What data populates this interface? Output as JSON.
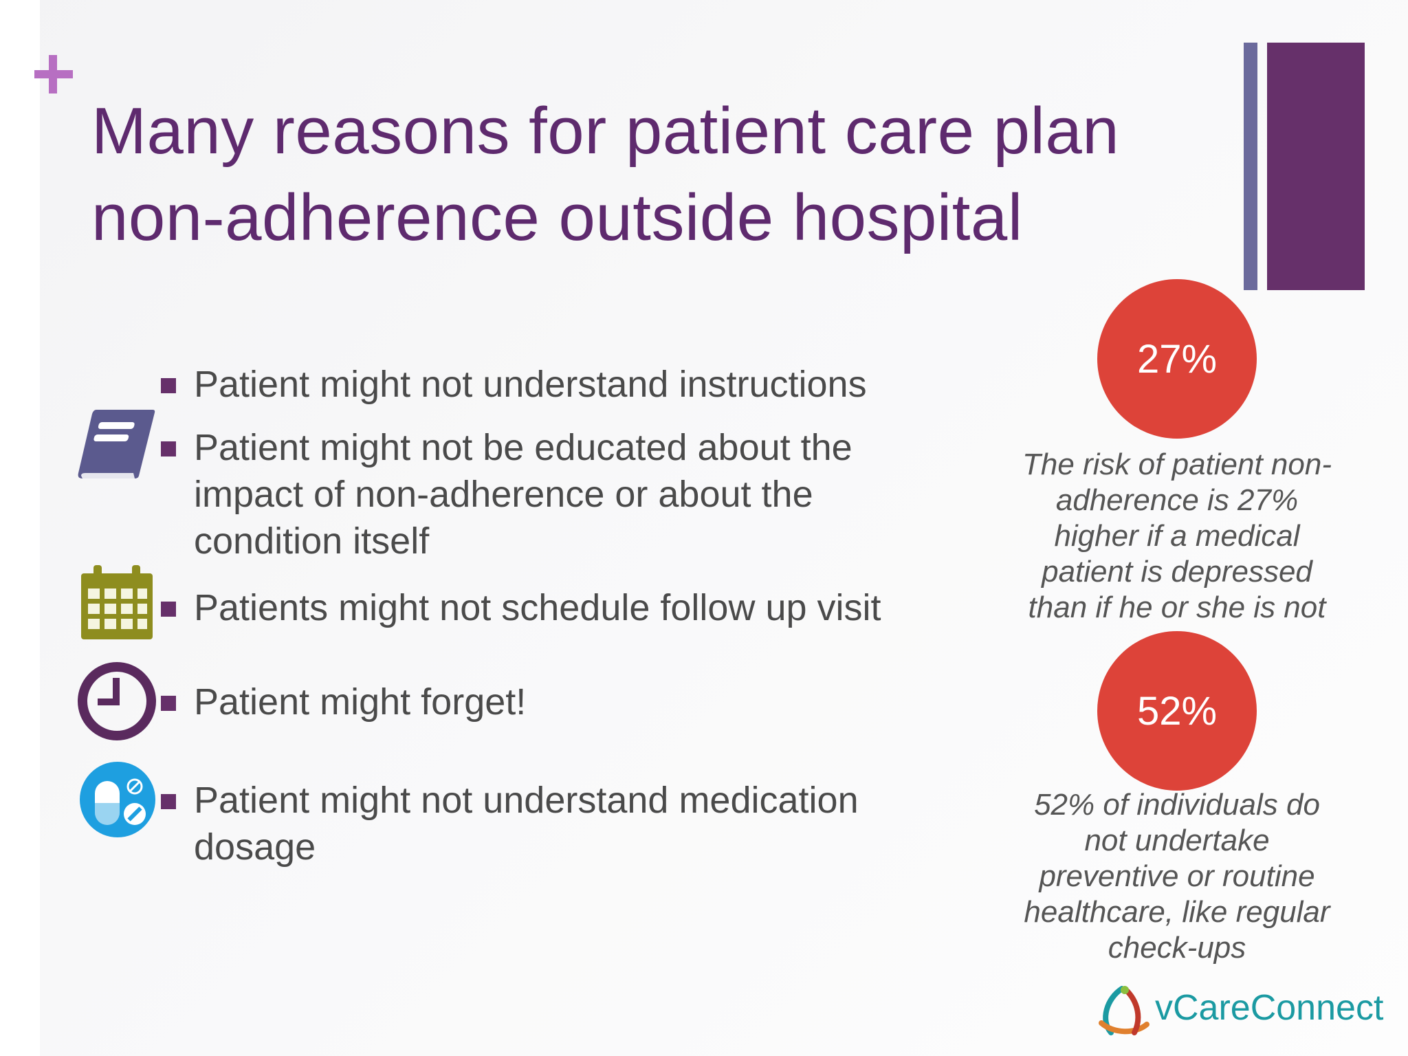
{
  "slide": {
    "title_line1": "Many reasons for patient care plan",
    "title_line2": "non-adherence outside hospital",
    "accent_color": "#66306a",
    "plus_color": "#b76fc2"
  },
  "bullets": [
    {
      "text": "Patient might not understand instructions",
      "icon": "none"
    },
    {
      "text_line1": "Patient might not be educated about the",
      "text_line2": "impact of non-adherence or about the",
      "text_line3": "condition itself",
      "icon": "book-icon"
    },
    {
      "text": "Patients might not schedule follow up visit",
      "icon": "calendar-icon"
    },
    {
      "text": "Patient might forget!",
      "icon": "clock-icon"
    },
    {
      "text_line1": "Patient might not understand medication",
      "text_line2": "dosage",
      "icon": "pills-icon"
    }
  ],
  "stats": [
    {
      "value": "27%",
      "lines": [
        "The risk of patient non-",
        "adherence is 27%",
        "higher if a medical",
        "patient is depressed",
        "than if he or she is not"
      ],
      "color": "#dd4339"
    },
    {
      "value": "52%",
      "lines": [
        "52% of individuals do",
        "not undertake",
        "preventive or routine",
        "healthcare, like regular",
        "check-ups"
      ],
      "color": "#dd4339"
    }
  ],
  "logo": {
    "text": "vCareConnect",
    "color": "#1b9aa2"
  }
}
